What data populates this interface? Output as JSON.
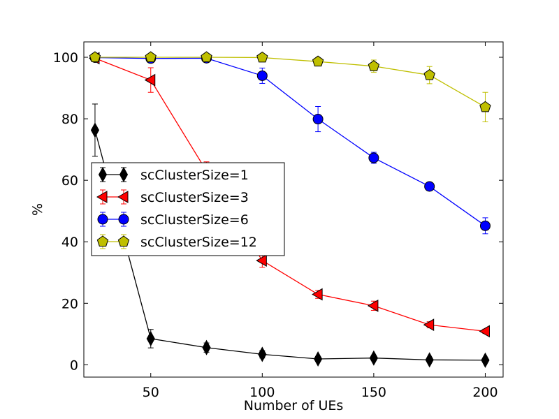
{
  "chart_data": {
    "type": "line",
    "title": "",
    "xlabel": "Number of UEs",
    "ylabel": "%",
    "xlim": [
      20,
      208
    ],
    "ylim": [
      -4,
      105
    ],
    "xticks": [
      50,
      100,
      150,
      200
    ],
    "yticks": [
      0,
      20,
      40,
      60,
      80,
      100
    ],
    "grid": false,
    "legend_position": "center-left",
    "x": [
      25,
      50,
      75,
      100,
      125,
      150,
      175,
      200
    ],
    "series": [
      {
        "name": "scClusterSize=1",
        "color": "#000000",
        "marker": "diamond",
        "values": [
          76.3,
          8.5,
          5.6,
          3.4,
          1.9,
          2.2,
          1.6,
          1.5
        ],
        "errors": [
          8.5,
          3.0,
          1.5,
          1.2,
          0.8,
          0.8,
          0.7,
          0.6
        ]
      },
      {
        "name": "scClusterSize=3",
        "color": "#ff0000",
        "marker": "triangle-left",
        "values": [
          99.7,
          92.6,
          63.0,
          33.9,
          22.9,
          19.2,
          13.0,
          10.9
        ],
        "errors": [
          0.4,
          4.0,
          3.0,
          2.2,
          1.3,
          1.5,
          1.0,
          0.7
        ]
      },
      {
        "name": "scClusterSize=6",
        "color": "#0000ff",
        "marker": "circle",
        "values": [
          99.9,
          99.6,
          99.7,
          94.0,
          79.9,
          67.3,
          58.0,
          45.2
        ],
        "errors": [
          0.2,
          0.4,
          0.4,
          2.5,
          4.1,
          1.8,
          1.3,
          2.6
        ]
      },
      {
        "name": "scClusterSize=12",
        "color": "#bfbf00",
        "marker": "pentagon",
        "values": [
          100.0,
          100.0,
          100.0,
          99.9,
          98.6,
          97.1,
          94.2,
          83.8
        ],
        "errors": [
          0.1,
          0.1,
          0.1,
          0.3,
          0.6,
          2.0,
          2.8,
          4.8
        ]
      }
    ]
  }
}
